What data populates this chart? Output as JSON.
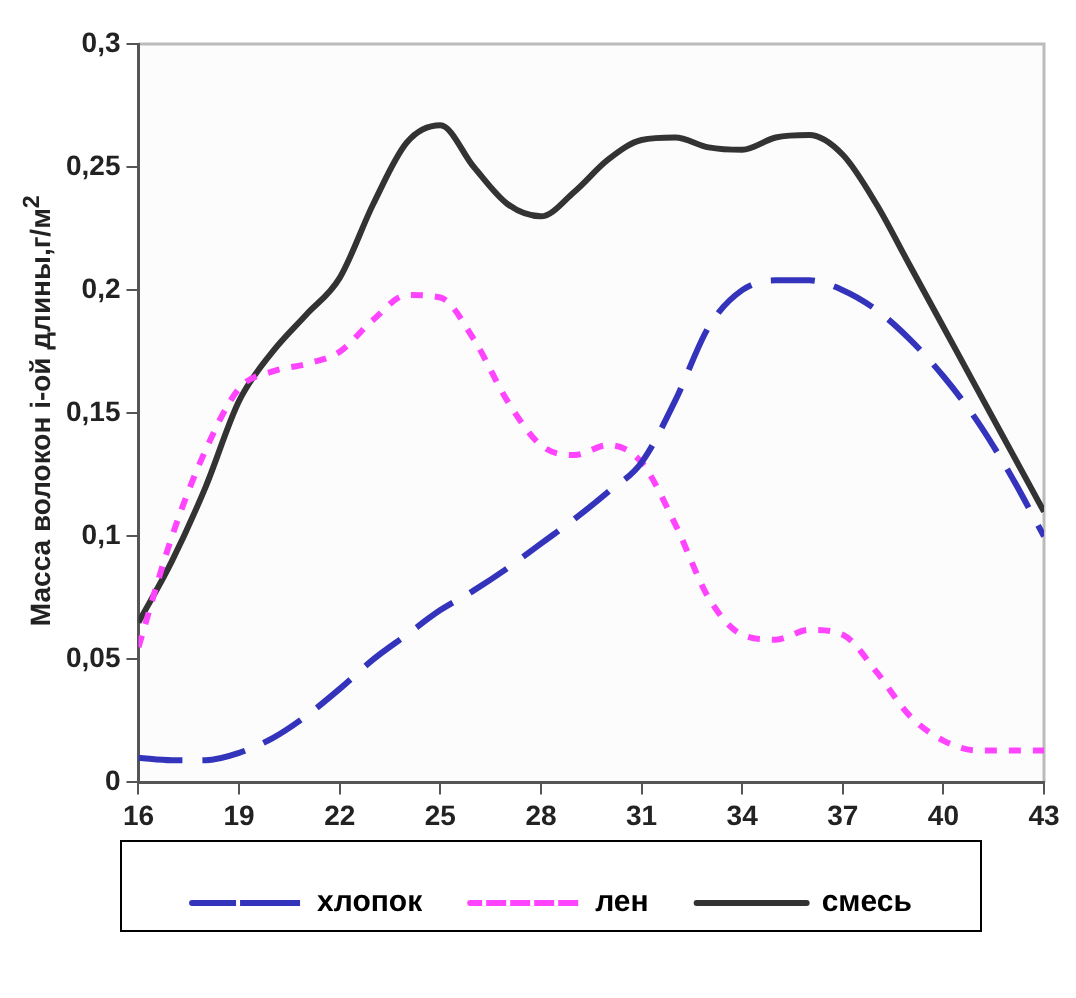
{
  "chart_data": {
    "type": "line",
    "ylabel": "Масса волокон і-ой длины,г/м$^{2}$",
    "x": [
      16,
      17,
      18,
      19,
      20,
      21,
      22,
      23,
      24,
      25,
      26,
      27,
      28,
      29,
      30,
      31,
      32,
      33,
      34,
      35,
      36,
      37,
      38,
      39,
      40,
      41,
      42,
      43
    ],
    "xlim": [
      16,
      43
    ],
    "xticks": [
      16,
      19,
      22,
      25,
      28,
      31,
      34,
      37,
      40,
      43
    ],
    "ylim": [
      0,
      0.3
    ],
    "yticks": [
      {
        "value": 0,
        "label": "0"
      },
      {
        "value": 0.05,
        "label": "0,05"
      },
      {
        "value": 0.1,
        "label": "0,1"
      },
      {
        "value": 0.15,
        "label": "0,15"
      },
      {
        "value": 0.2,
        "label": "0,2"
      },
      {
        "value": 0.25,
        "label": "0,25"
      },
      {
        "value": 0.3,
        "label": "0,3"
      }
    ],
    "grid": false,
    "legend": "bottom",
    "marker": "none",
    "series": [
      {
        "name": "хлопок",
        "color": "#3333bb",
        "line_style": "dashed",
        "values": [
          0.01,
          0.009,
          0.009,
          0.012,
          0.018,
          0.027,
          0.038,
          0.05,
          0.06,
          0.07,
          0.078,
          0.087,
          0.097,
          0.107,
          0.118,
          0.13,
          0.155,
          0.185,
          0.2,
          0.204,
          0.204,
          0.2,
          0.192,
          0.18,
          0.165,
          0.147,
          0.125,
          0.1
        ]
      },
      {
        "name": "лен",
        "color": "#ff44ff",
        "line_style": "dotted",
        "values": [
          0.055,
          0.1,
          0.135,
          0.16,
          0.167,
          0.17,
          0.175,
          0.188,
          0.198,
          0.197,
          0.18,
          0.155,
          0.137,
          0.133,
          0.137,
          0.13,
          0.105,
          0.075,
          0.06,
          0.058,
          0.062,
          0.06,
          0.045,
          0.027,
          0.017,
          0.013,
          0.013,
          0.013
        ]
      },
      {
        "name": "смесь",
        "color": "#333333",
        "line_style": "solid",
        "values": [
          0.065,
          0.09,
          0.12,
          0.155,
          0.175,
          0.19,
          0.205,
          0.235,
          0.26,
          0.267,
          0.25,
          0.235,
          0.23,
          0.24,
          0.253,
          0.261,
          0.262,
          0.258,
          0.257,
          0.262,
          0.263,
          0.255,
          0.235,
          0.21,
          0.185,
          0.16,
          0.135,
          0.11
        ]
      }
    ]
  }
}
